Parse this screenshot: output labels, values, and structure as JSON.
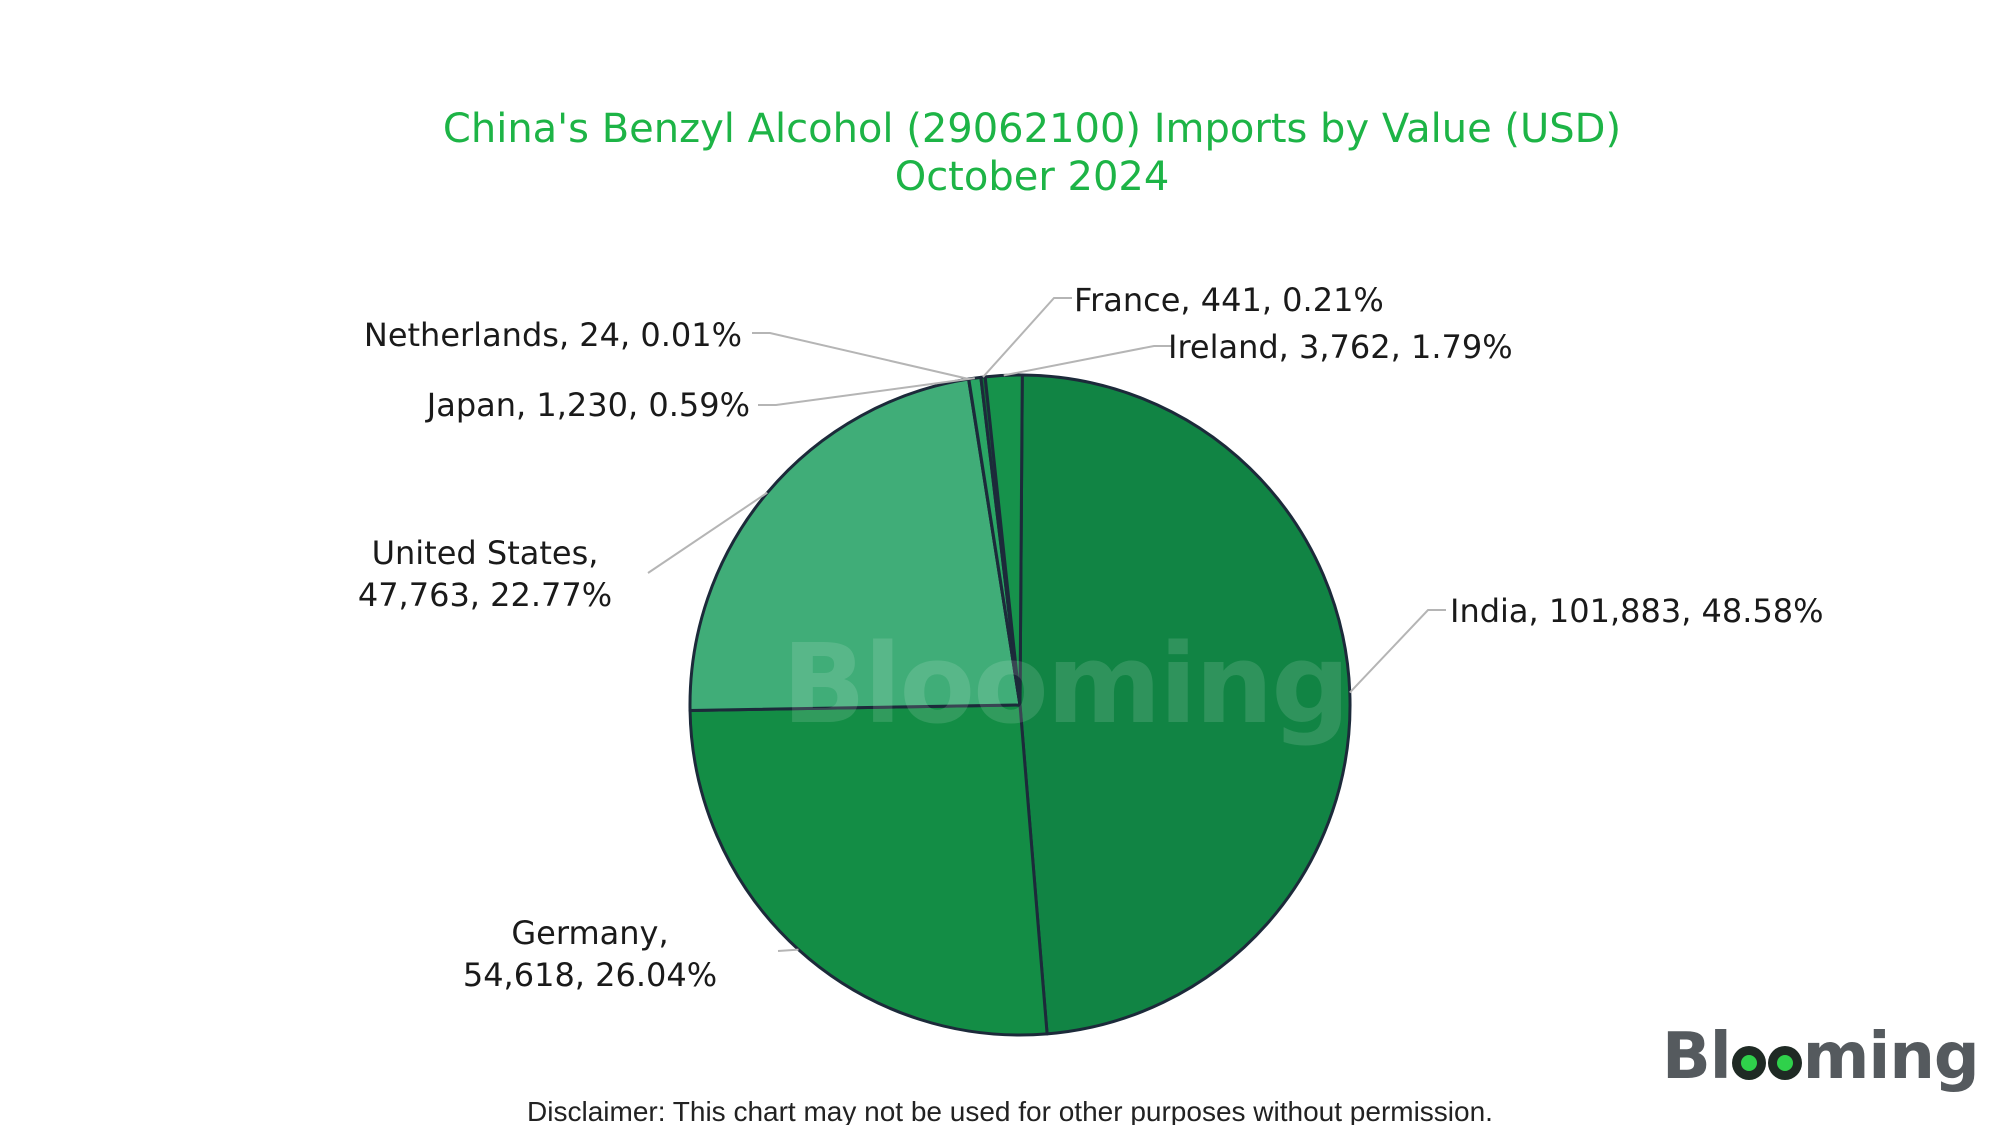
{
  "title": {
    "line1": "China's Benzyl Alcohol (29062100) Imports by Value (USD)",
    "line2": "October 2024"
  },
  "watermark": "Blooming",
  "logo": {
    "prefix": "Bl",
    "suffix": "ming"
  },
  "disclaimer": "Disclaimer: This chart may not be used for other purposes without permission.",
  "colors": {
    "title": "#1db446",
    "outline": "#1c2a3a"
  },
  "chart_data": {
    "type": "pie",
    "title": "China's Benzyl Alcohol (29062100) Imports by Value (USD) October 2024",
    "slices": [
      {
        "label": "India",
        "value": 101883,
        "percent": 48.58,
        "color": "#118444",
        "label_lines": [
          "India, 101,883, 48.58%"
        ]
      },
      {
        "label": "Germany",
        "value": 54618,
        "percent": 26.04,
        "color": "#138d45",
        "label_lines": [
          "Germany,",
          "54,618, 26.04%"
        ]
      },
      {
        "label": "United States",
        "value": 47763,
        "percent": 22.77,
        "color": "#40ad78",
        "label_lines": [
          "United States,",
          "47,763, 22.77%"
        ]
      },
      {
        "label": "Netherlands",
        "value": 24,
        "percent": 0.01,
        "color": "#1f9a55",
        "label_lines": [
          "Netherlands, 24, 0.01%"
        ]
      },
      {
        "label": "Japan",
        "value": 1230,
        "percent": 0.59,
        "color": "#2aa664",
        "label_lines": [
          "Japan, 1,230, 0.59%"
        ]
      },
      {
        "label": "France",
        "value": 441,
        "percent": 0.21,
        "color": "#0e6e37",
        "label_lines": [
          "France, 441, 0.21%"
        ]
      },
      {
        "label": "Ireland",
        "value": 3762,
        "percent": 1.79,
        "color": "#16924b",
        "label_lines": [
          "Ireland, 3,762, 1.79%"
        ]
      }
    ]
  }
}
